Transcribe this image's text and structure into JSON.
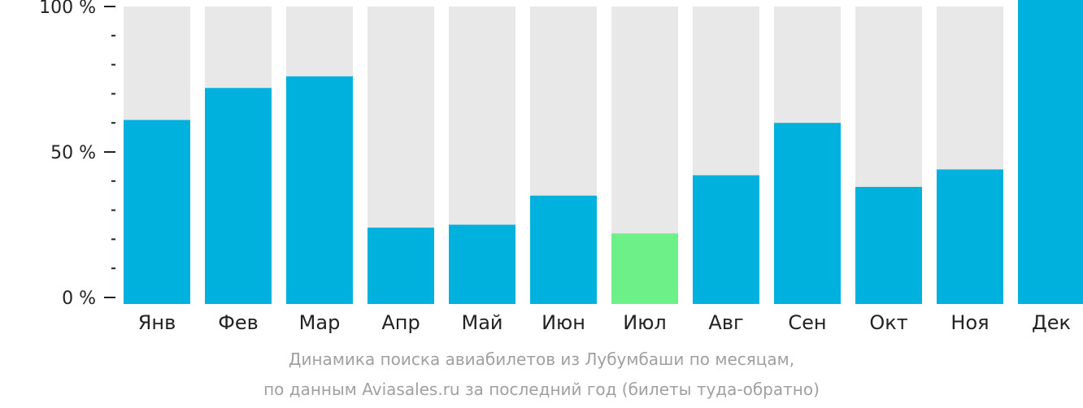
{
  "chart_data": {
    "type": "bar",
    "categories": [
      "Янв",
      "Фев",
      "Мар",
      "Апр",
      "Май",
      "Июн",
      "Июл",
      "Авг",
      "Сен",
      "Окт",
      "Ноя",
      "Дек"
    ],
    "values": [
      61,
      72,
      76,
      24,
      25,
      35,
      22,
      42,
      60,
      38,
      44,
      100
    ],
    "highlight_category": "Июл",
    "ylim": [
      0,
      100
    ],
    "y_ticks": [
      "0 %",
      "50 %",
      "100 %"
    ],
    "colors": {
      "bar": "#00b0dd",
      "highlight": "#6cf087",
      "background_bar": "#e8e8e8",
      "axis": "#222222"
    }
  },
  "caption": {
    "line1": "Динамика поиска авиабилетов из Лубумбаши по месяцам,",
    "line2": "по данным Aviasales.ru за последний год (билеты туда-обратно)"
  }
}
